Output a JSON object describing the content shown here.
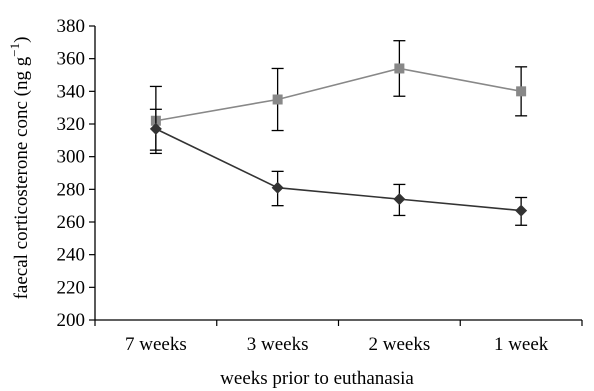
{
  "chart_data": {
    "type": "line",
    "categories": [
      "7 weeks",
      "3 weeks",
      "2 weeks",
      "1 week"
    ],
    "xlabel": "weeks prior to euthanasia",
    "ylabel": "faecal corticosterone conc (ng g",
    "ylabel_sup": "−1",
    "ylabel_close": ")",
    "ylim": [
      200,
      380
    ],
    "yticks": [
      200,
      220,
      240,
      260,
      280,
      300,
      320,
      340,
      360,
      380
    ],
    "grid": false,
    "legend": "none",
    "series": [
      {
        "marker": "square",
        "color": "#888888",
        "values": [
          322,
          335,
          354,
          340
        ],
        "err_low": [
          302,
          316,
          337,
          325
        ],
        "err_high": [
          343,
          354,
          371,
          355
        ]
      },
      {
        "marker": "diamond",
        "color": "#333333",
        "values": [
          317,
          281,
          274,
          267
        ],
        "err_low": [
          304,
          270,
          264,
          258
        ],
        "err_high": [
          329,
          291,
          283,
          275
        ]
      }
    ]
  }
}
